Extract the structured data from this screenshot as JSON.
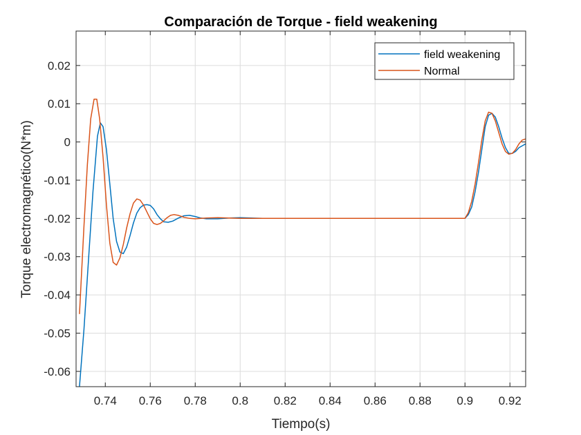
{
  "chart_data": {
    "type": "line",
    "title": "Comparación de Torque - field weakening",
    "xlabel": "Tiempo(s)",
    "ylabel": "Torque electromagnético(N*m)",
    "xlim": [
      0.727,
      0.927
    ],
    "ylim": [
      -0.064,
      0.029
    ],
    "xticks": [
      0.74,
      0.76,
      0.78,
      0.8,
      0.82,
      0.84,
      0.86,
      0.88,
      0.9,
      0.92
    ],
    "xtick_labels": [
      "0.74",
      "0.76",
      "0.78",
      "0.8",
      "0.82",
      "0.84",
      "0.86",
      "0.88",
      "0.9",
      "0.92"
    ],
    "yticks": [
      0.02,
      0.01,
      0,
      -0.01,
      -0.02,
      -0.03,
      -0.04,
      -0.05,
      -0.06
    ],
    "ytick_labels": [
      "0.02",
      "0.01",
      "0",
      "-0.01",
      "-0.02",
      "-0.03",
      "-0.04",
      "-0.05",
      "-0.06"
    ],
    "grid": true,
    "legend_position": "top-right",
    "series": [
      {
        "name": "field weakening",
        "color": "#0072BD",
        "x": [
          0.7285,
          0.7305,
          0.7325,
          0.7345,
          0.7365,
          0.7378,
          0.739,
          0.7405,
          0.742,
          0.7435,
          0.745,
          0.7465,
          0.748,
          0.7495,
          0.751,
          0.7525,
          0.754,
          0.7555,
          0.757,
          0.7585,
          0.76,
          0.7615,
          0.763,
          0.7645,
          0.766,
          0.768,
          0.77,
          0.7725,
          0.775,
          0.7775,
          0.78,
          0.7825,
          0.785,
          0.79,
          0.795,
          0.8,
          0.805,
          0.81,
          0.82,
          0.86,
          0.9,
          0.9015,
          0.903,
          0.9045,
          0.906,
          0.9075,
          0.909,
          0.9105,
          0.912,
          0.9135,
          0.915,
          0.9165,
          0.918,
          0.9195,
          0.921,
          0.9225,
          0.924,
          0.9255,
          0.927
        ],
        "y": [
          -0.064,
          -0.049,
          -0.031,
          -0.013,
          0.0015,
          0.005,
          0.004,
          -0.002,
          -0.011,
          -0.02,
          -0.026,
          -0.0288,
          -0.0292,
          -0.0275,
          -0.0245,
          -0.0212,
          -0.0186,
          -0.0172,
          -0.0165,
          -0.0164,
          -0.0166,
          -0.0175,
          -0.019,
          -0.0201,
          -0.0209,
          -0.021,
          -0.0207,
          -0.0199,
          -0.0193,
          -0.0192,
          -0.0195,
          -0.0199,
          -0.0201,
          -0.0201,
          -0.0199,
          -0.0198,
          -0.0199,
          -0.02,
          -0.02,
          -0.02,
          -0.02,
          -0.019,
          -0.017,
          -0.013,
          -0.008,
          -0.002,
          0.004,
          0.007,
          0.0075,
          0.0065,
          0.004,
          0.001,
          -0.0015,
          -0.003,
          -0.003,
          -0.0025,
          -0.0015,
          -0.001,
          -0.0005
        ]
      },
      {
        "name": "Normal",
        "color": "#D95319",
        "x": [
          0.7285,
          0.7305,
          0.732,
          0.7335,
          0.735,
          0.7362,
          0.7375,
          0.739,
          0.7405,
          0.742,
          0.7435,
          0.745,
          0.7465,
          0.748,
          0.7495,
          0.751,
          0.7525,
          0.754,
          0.7555,
          0.757,
          0.7585,
          0.76,
          0.7615,
          0.763,
          0.7645,
          0.766,
          0.7675,
          0.769,
          0.7705,
          0.7725,
          0.775,
          0.7775,
          0.78,
          0.7825,
          0.785,
          0.79,
          0.795,
          0.8,
          0.805,
          0.81,
          0.82,
          0.86,
          0.9,
          0.9015,
          0.903,
          0.9045,
          0.906,
          0.9075,
          0.909,
          0.9105,
          0.912,
          0.9135,
          0.915,
          0.9165,
          0.918,
          0.9195,
          0.921,
          0.9225,
          0.924,
          0.9255,
          0.927
        ],
        "y": [
          -0.045,
          -0.022,
          -0.006,
          0.006,
          0.0112,
          0.0112,
          0.006,
          -0.004,
          -0.0165,
          -0.0265,
          -0.0315,
          -0.0322,
          -0.0303,
          -0.0268,
          -0.0225,
          -0.0188,
          -0.016,
          -0.0149,
          -0.0152,
          -0.0165,
          -0.0183,
          -0.0201,
          -0.0213,
          -0.0216,
          -0.0213,
          -0.0206,
          -0.0198,
          -0.0192,
          -0.019,
          -0.0192,
          -0.0197,
          -0.02,
          -0.0201,
          -0.02,
          -0.0199,
          -0.0198,
          -0.0199,
          -0.02,
          -0.02,
          -0.02,
          -0.02,
          -0.02,
          -0.02,
          -0.0185,
          -0.0155,
          -0.011,
          -0.0055,
          0.0005,
          0.0055,
          0.0078,
          0.0075,
          0.0055,
          0.0025,
          -0.0005,
          -0.0025,
          -0.0032,
          -0.003,
          -0.002,
          -0.0005,
          0.0005,
          0.0008
        ]
      }
    ]
  }
}
